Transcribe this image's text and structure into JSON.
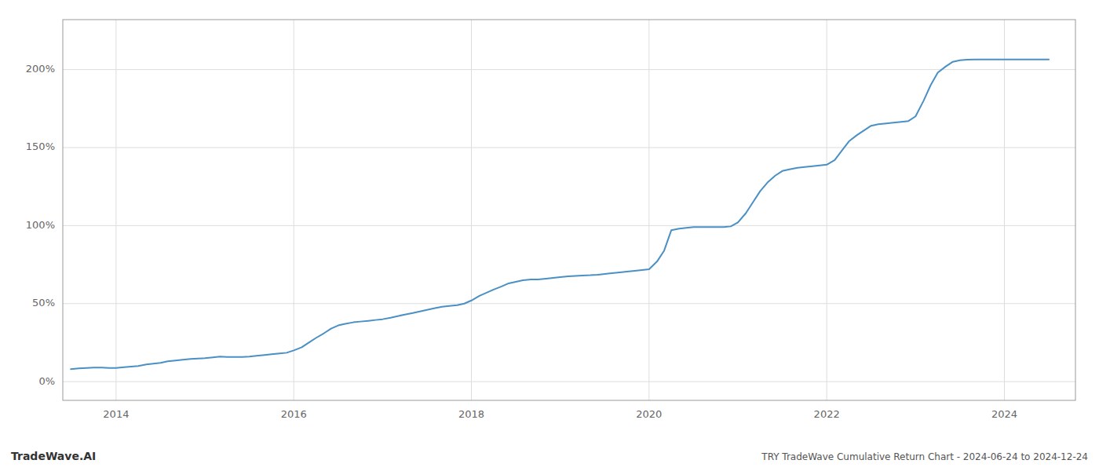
{
  "chart_data": {
    "type": "line",
    "title": "TRY TradeWave Cumulative Return Chart - 2024-06-24 to 2024-12-24",
    "annotations": [
      "TradeWave.AI"
    ],
    "color": "#4a90c4",
    "grid": true,
    "xlim": [
      2013.4,
      2024.8
    ],
    "ylim": [
      -0.12,
      2.32
    ],
    "xticks": [
      2014,
      2016,
      2018,
      2020,
      2022,
      2024
    ],
    "yticks": [
      {
        "value": 0.0,
        "label": "0%"
      },
      {
        "value": 0.5,
        "label": "50%"
      },
      {
        "value": 1.0,
        "label": "100%"
      },
      {
        "value": 1.5,
        "label": "150%"
      },
      {
        "value": 2.0,
        "label": "200%"
      }
    ],
    "x": [
      2013.49,
      2013.58,
      2013.67,
      2013.75,
      2013.84,
      2013.92,
      2014.0,
      2014.09,
      2014.17,
      2014.25,
      2014.34,
      2014.42,
      2014.5,
      2014.58,
      2014.67,
      2014.75,
      2014.84,
      2014.92,
      2015.0,
      2015.09,
      2015.17,
      2015.25,
      2015.34,
      2015.42,
      2015.5,
      2015.58,
      2015.67,
      2015.75,
      2015.84,
      2015.92,
      2016.0,
      2016.09,
      2016.17,
      2016.25,
      2016.34,
      2016.42,
      2016.5,
      2016.58,
      2016.67,
      2016.75,
      2016.84,
      2016.92,
      2017.0,
      2017.09,
      2017.17,
      2017.25,
      2017.34,
      2017.42,
      2017.5,
      2017.58,
      2017.67,
      2017.75,
      2017.84,
      2017.92,
      2018.0,
      2018.09,
      2018.17,
      2018.25,
      2018.34,
      2018.42,
      2018.5,
      2018.58,
      2018.67,
      2018.75,
      2018.84,
      2018.92,
      2019.0,
      2019.09,
      2019.17,
      2019.25,
      2019.34,
      2019.42,
      2019.5,
      2019.58,
      2019.67,
      2019.75,
      2019.84,
      2019.92,
      2020.0,
      2020.09,
      2020.17,
      2020.25,
      2020.34,
      2020.42,
      2020.5,
      2020.58,
      2020.67,
      2020.75,
      2020.84,
      2020.92,
      2021.0,
      2021.09,
      2021.17,
      2021.25,
      2021.34,
      2021.42,
      2021.5,
      2021.58,
      2021.67,
      2021.75,
      2021.84,
      2021.92,
      2022.0,
      2022.09,
      2022.17,
      2022.25,
      2022.34,
      2022.42,
      2022.5,
      2022.58,
      2022.67,
      2022.75,
      2022.84,
      2022.92,
      2023.0,
      2023.09,
      2023.17,
      2023.25,
      2023.34,
      2023.42,
      2023.5,
      2023.58,
      2023.67,
      2023.75,
      2023.84,
      2023.92,
      2024.0,
      2024.09,
      2024.17,
      2024.25,
      2024.34,
      2024.42,
      2024.5
    ],
    "values": [
      0.08,
      0.085,
      0.088,
      0.09,
      0.09,
      0.088,
      0.088,
      0.092,
      0.096,
      0.1,
      0.11,
      0.115,
      0.12,
      0.13,
      0.135,
      0.14,
      0.145,
      0.148,
      0.15,
      0.155,
      0.16,
      0.158,
      0.158,
      0.158,
      0.16,
      0.165,
      0.17,
      0.175,
      0.18,
      0.185,
      0.2,
      0.22,
      0.25,
      0.28,
      0.31,
      0.34,
      0.36,
      0.37,
      0.38,
      0.385,
      0.39,
      0.395,
      0.4,
      0.41,
      0.42,
      0.43,
      0.44,
      0.45,
      0.46,
      0.47,
      0.48,
      0.485,
      0.49,
      0.5,
      0.52,
      0.55,
      0.57,
      0.59,
      0.61,
      0.63,
      0.64,
      0.65,
      0.655,
      0.655,
      0.66,
      0.665,
      0.67,
      0.675,
      0.678,
      0.68,
      0.682,
      0.685,
      0.69,
      0.695,
      0.7,
      0.705,
      0.71,
      0.715,
      0.72,
      0.77,
      0.84,
      0.97,
      0.98,
      0.985,
      0.99,
      0.99,
      0.99,
      0.99,
      0.99,
      0.995,
      1.02,
      1.08,
      1.15,
      1.22,
      1.28,
      1.32,
      1.35,
      1.36,
      1.37,
      1.375,
      1.38,
      1.385,
      1.39,
      1.42,
      1.48,
      1.54,
      1.58,
      1.61,
      1.64,
      1.65,
      1.655,
      1.66,
      1.665,
      1.67,
      1.7,
      1.8,
      1.9,
      1.98,
      2.02,
      2.05,
      2.06,
      2.063,
      2.065,
      2.065,
      2.065,
      2.065,
      2.065,
      2.065,
      2.065,
      2.065,
      2.065,
      2.065,
      2.065
    ]
  }
}
